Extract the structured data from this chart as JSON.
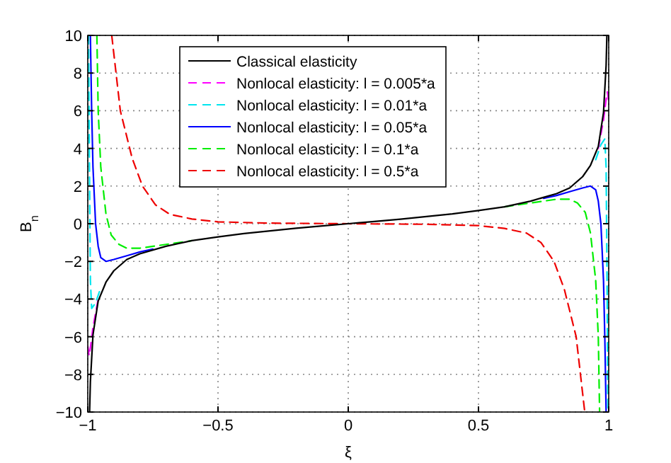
{
  "chart_data": {
    "type": "line",
    "xlabel": "ξ",
    "ylabel": "B$_{n}$",
    "xlim": [
      -1,
      1
    ],
    "ylim": [
      -10,
      10
    ],
    "xticks": [
      -1,
      -0.5,
      0,
      0.5,
      1
    ],
    "yticks": [
      -10,
      -8,
      -6,
      -4,
      -2,
      0,
      2,
      4,
      6,
      8,
      10
    ],
    "grid": true,
    "legend": "top",
    "marker": "none",
    "series": [
      {
        "name": "Classical elasticity",
        "color": "#000000",
        "line_style": "solid",
        "x": [
          -0.993,
          -0.99,
          -0.98,
          -0.96,
          -0.93,
          -0.9,
          -0.85,
          -0.8,
          -0.7,
          -0.6,
          -0.5,
          -0.4,
          -0.3,
          -0.2,
          -0.1,
          0,
          0.1,
          0.2,
          0.3,
          0.4,
          0.5,
          0.6,
          0.7,
          0.8,
          0.85,
          0.9,
          0.93,
          0.96,
          0.98,
          0.99,
          0.993
        ],
        "values": [
          -10,
          -8.4,
          -5.9,
          -4.1,
          -3.1,
          -2.5,
          -1.9,
          -1.6,
          -1.2,
          -0.9,
          -0.7,
          -0.52,
          -0.38,
          -0.24,
          -0.12,
          0,
          0.12,
          0.24,
          0.38,
          0.52,
          0.7,
          0.9,
          1.2,
          1.6,
          1.9,
          2.5,
          3.1,
          4.1,
          5.9,
          8.4,
          10
        ]
      },
      {
        "name": "Nonlocal elasticity: l = 0.005*a",
        "color": "#ff00ff",
        "line_style": "dashed",
        "x": [
          -1,
          -0.995,
          -0.99,
          -0.98,
          -0.96,
          0,
          0.96,
          0.98,
          0.99,
          0.995,
          1
        ],
        "values": [
          -6.5,
          -7,
          -6.6,
          -5.5,
          -4,
          null,
          4,
          5.5,
          6.6,
          7,
          6.5
        ]
      },
      {
        "name": "Nonlocal elasticity: l = 0.01*a",
        "color": "#00e5ee",
        "line_style": "dashed",
        "x": [
          -0.997,
          -0.993,
          -0.99,
          -0.985,
          -0.97,
          -0.95,
          0,
          0.95,
          0.97,
          0.985,
          0.99,
          0.993,
          0.997
        ],
        "values": [
          10,
          2,
          -3,
          -4.5,
          -4.2,
          -3.4,
          null,
          3.4,
          4.2,
          4.5,
          3,
          -2,
          -10
        ]
      },
      {
        "name": "Nonlocal elasticity: l = 0.05*a",
        "color": "#0000ff",
        "line_style": "solid",
        "x": [
          -0.99,
          -0.985,
          -0.98,
          -0.97,
          -0.96,
          -0.95,
          -0.93,
          -0.9,
          -0.85,
          -0.8,
          -0.75,
          0,
          0.75,
          0.8,
          0.85,
          0.9,
          0.93,
          0.95,
          0.96,
          0.97,
          0.98,
          0.985,
          0.99
        ],
        "values": [
          10,
          6,
          3,
          0,
          -1.2,
          -1.8,
          -2,
          -1.9,
          -1.7,
          -1.5,
          -1.35,
          null,
          1.35,
          1.5,
          1.7,
          1.9,
          2,
          1.8,
          1.2,
          0,
          -3,
          -6,
          -10
        ]
      },
      {
        "name": "Nonlocal elasticity: l = 0.1*a",
        "color": "#00ee00",
        "line_style": "dashed",
        "x": [
          -0.965,
          -0.96,
          -0.95,
          -0.93,
          -0.91,
          -0.88,
          -0.85,
          -0.8,
          -0.7,
          -0.6,
          0,
          0.6,
          0.7,
          0.8,
          0.85,
          0.88,
          0.91,
          0.93,
          0.95,
          0.96,
          0.965
        ],
        "values": [
          10,
          6,
          3,
          0.5,
          -0.6,
          -1.1,
          -1.3,
          -1.3,
          -1.1,
          -0.9,
          null,
          0.9,
          1.1,
          1.3,
          1.3,
          1.1,
          0.6,
          -0.5,
          -3,
          -6,
          -10
        ]
      },
      {
        "name": "Nonlocal elasticity: l = 0.5*a",
        "color": "#ee0000",
        "line_style": "dashed",
        "x": [
          -0.908,
          -0.875,
          -0.83,
          -0.79,
          -0.74,
          -0.685,
          -0.6,
          -0.5,
          -0.3,
          0,
          0.3,
          0.5,
          0.6,
          0.685,
          0.74,
          0.79,
          0.83,
          0.875,
          0.908
        ],
        "values": [
          10,
          6,
          3.5,
          2,
          1,
          0.5,
          0.25,
          0.1,
          0.03,
          0,
          -0.03,
          -0.1,
          -0.25,
          -0.5,
          -1,
          -2,
          -3.5,
          -6,
          -10
        ]
      }
    ]
  }
}
